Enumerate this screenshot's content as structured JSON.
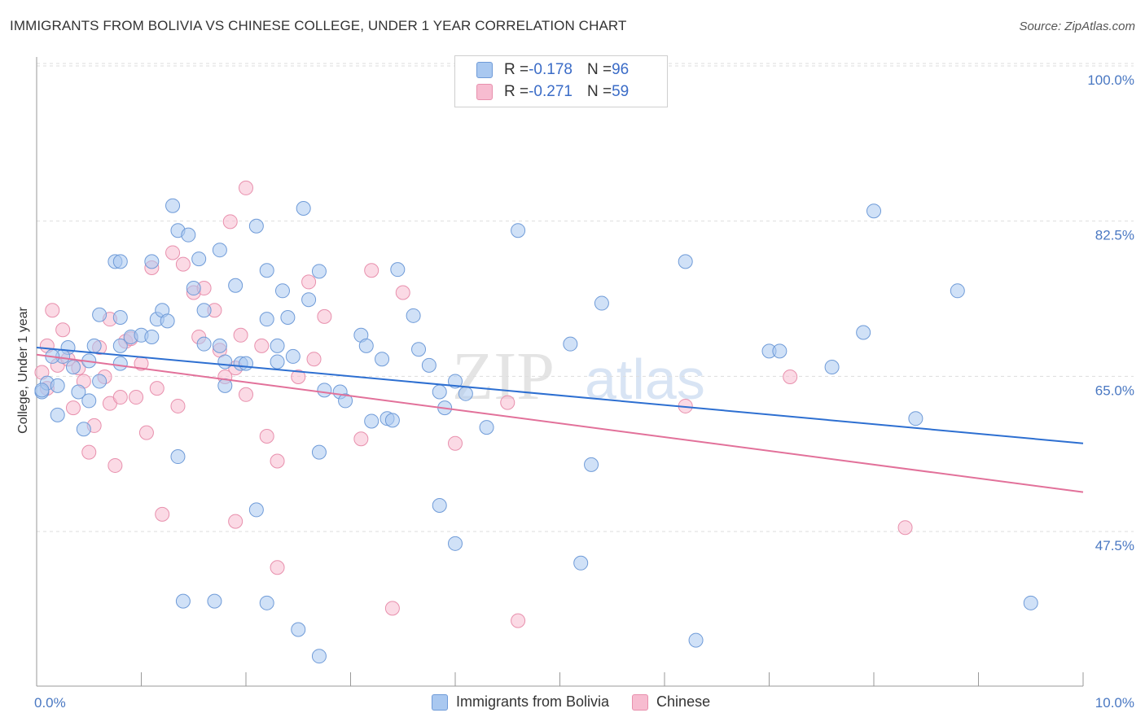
{
  "title": "IMMIGRANTS FROM BOLIVIA VS CHINESE COLLEGE, UNDER 1 YEAR CORRELATION CHART",
  "source": "Source: ZipAtlas.com",
  "watermark": {
    "zip": "ZIP",
    "atlas": "atlas"
  },
  "colors": {
    "blue_fill": "#a9c8f0",
    "blue_stroke": "#6f9bd8",
    "blue_line": "#2d6fd1",
    "pink_fill": "#f7bcd0",
    "pink_stroke": "#e890ad",
    "pink_line": "#e2719a",
    "axis_text": "#4a78c2",
    "grid": "#dddddd"
  },
  "legend_top": [
    {
      "r_label": "R = ",
      "r_value": "-0.178",
      "n_label": "N = ",
      "n_value": "96",
      "series": "blue"
    },
    {
      "r_label": "R = ",
      "r_value": "-0.271",
      "n_label": "N = ",
      "n_value": "59",
      "series": "pink"
    }
  ],
  "legend_bottom": [
    {
      "label": "Immigrants from Bolivia",
      "series": "blue"
    },
    {
      "label": "Chinese",
      "series": "pink"
    }
  ],
  "chart_data": {
    "type": "scatter",
    "xlabel": "",
    "ylabel": "College, Under 1 year",
    "xlim": [
      0,
      10
    ],
    "ylim": [
      30,
      102
    ],
    "x_tick_labels": [
      {
        "value": 0,
        "label": "0.0%"
      },
      {
        "value": 10,
        "label": "10.0%"
      }
    ],
    "y_tick_labels": [
      {
        "value": 100,
        "label": "100.0%"
      },
      {
        "value": 82.5,
        "label": "82.5%"
      },
      {
        "value": 65,
        "label": "65.0%"
      },
      {
        "value": 47.5,
        "label": "47.5%"
      }
    ],
    "x_minor_ticks": [
      0,
      1,
      2,
      3,
      4,
      5,
      6,
      7,
      8,
      9,
      10
    ],
    "series": [
      {
        "name": "Immigrants from Bolivia",
        "color": "blue",
        "trend": {
          "x": [
            0,
            10
          ],
          "y": [
            69.8,
            59.0
          ]
        },
        "points": [
          [
            0.05,
            64.8
          ],
          [
            0.1,
            65.8
          ],
          [
            0.2,
            65.5
          ],
          [
            0.2,
            62.2
          ],
          [
            0.3,
            69.8
          ],
          [
            0.25,
            68.8
          ],
          [
            0.15,
            68.8
          ],
          [
            0.35,
            67.6
          ],
          [
            0.4,
            64.8
          ],
          [
            0.45,
            60.6
          ],
          [
            0.5,
            68.3
          ],
          [
            0.5,
            63.8
          ],
          [
            0.55,
            70.0
          ],
          [
            0.6,
            66.0
          ],
          [
            0.6,
            73.5
          ],
          [
            0.75,
            79.5
          ],
          [
            0.8,
            79.5
          ],
          [
            0.8,
            73.2
          ],
          [
            0.8,
            70.0
          ],
          [
            0.8,
            68.0
          ],
          [
            0.9,
            71.0
          ],
          [
            1.0,
            71.2
          ],
          [
            1.1,
            71.0
          ],
          [
            1.1,
            79.5
          ],
          [
            1.15,
            73.0
          ],
          [
            1.2,
            74.0
          ],
          [
            1.25,
            72.8
          ],
          [
            1.3,
            85.8
          ],
          [
            1.35,
            83.0
          ],
          [
            1.35,
            57.5
          ],
          [
            1.45,
            82.5
          ],
          [
            1.55,
            79.8
          ],
          [
            1.5,
            76.5
          ],
          [
            1.6,
            74.0
          ],
          [
            1.6,
            70.2
          ],
          [
            1.75,
            80.8
          ],
          [
            1.75,
            70.0
          ],
          [
            1.8,
            68.2
          ],
          [
            1.8,
            65.5
          ],
          [
            1.9,
            76.8
          ],
          [
            1.95,
            68.0
          ],
          [
            2.0,
            68.0
          ],
          [
            2.1,
            83.5
          ],
          [
            2.1,
            51.5
          ],
          [
            2.2,
            78.5
          ],
          [
            2.2,
            73.0
          ],
          [
            2.3,
            70.0
          ],
          [
            2.3,
            68.2
          ],
          [
            2.35,
            76.2
          ],
          [
            2.45,
            68.8
          ],
          [
            2.55,
            85.5
          ],
          [
            2.6,
            75.2
          ],
          [
            2.7,
            78.4
          ],
          [
            2.7,
            58.0
          ],
          [
            2.75,
            65.0
          ],
          [
            2.9,
            64.8
          ],
          [
            2.95,
            63.8
          ],
          [
            3.1,
            71.2
          ],
          [
            3.15,
            70.0
          ],
          [
            3.2,
            61.5
          ],
          [
            3.3,
            68.5
          ],
          [
            3.35,
            61.8
          ],
          [
            3.4,
            61.6
          ],
          [
            3.45,
            78.6
          ],
          [
            3.6,
            73.4
          ],
          [
            3.65,
            69.6
          ],
          [
            3.75,
            67.8
          ],
          [
            3.85,
            64.8
          ],
          [
            3.85,
            52.0
          ],
          [
            3.9,
            63.0
          ],
          [
            4.0,
            47.7
          ],
          [
            4.1,
            64.6
          ],
          [
            4.3,
            60.8
          ],
          [
            4.6,
            83.0
          ],
          [
            4.0,
            66.0
          ],
          [
            2.4,
            73.2
          ],
          [
            1.4,
            41.2
          ],
          [
            1.7,
            41.2
          ],
          [
            2.2,
            41.0
          ],
          [
            2.5,
            38.0
          ],
          [
            2.7,
            35.0
          ],
          [
            5.1,
            70.2
          ],
          [
            5.2,
            45.5
          ],
          [
            5.3,
            56.6
          ],
          [
            5.4,
            74.8
          ],
          [
            6.2,
            79.5
          ],
          [
            6.3,
            36.8
          ],
          [
            7.0,
            69.4
          ],
          [
            7.1,
            69.4
          ],
          [
            7.6,
            67.6
          ],
          [
            7.9,
            71.5
          ],
          [
            8.0,
            85.2
          ],
          [
            8.4,
            61.8
          ],
          [
            8.8,
            76.2
          ],
          [
            9.5,
            41.0
          ],
          [
            0.05,
            65.0
          ]
        ]
      },
      {
        "name": "Chinese",
        "color": "pink",
        "trend": {
          "x": [
            0,
            10
          ],
          "y": [
            69.0,
            53.5
          ]
        },
        "points": [
          [
            0.05,
            67.0
          ],
          [
            0.1,
            65.2
          ],
          [
            0.1,
            70.0
          ],
          [
            0.15,
            74.0
          ],
          [
            0.2,
            67.8
          ],
          [
            0.25,
            71.8
          ],
          [
            0.3,
            68.5
          ],
          [
            0.35,
            63.0
          ],
          [
            0.4,
            67.5
          ],
          [
            0.45,
            66.0
          ],
          [
            0.5,
            58.0
          ],
          [
            0.55,
            61.0
          ],
          [
            0.6,
            69.8
          ],
          [
            0.65,
            66.5
          ],
          [
            0.7,
            73.0
          ],
          [
            0.7,
            63.5
          ],
          [
            0.75,
            56.5
          ],
          [
            0.8,
            64.2
          ],
          [
            0.85,
            70.5
          ],
          [
            0.9,
            70.8
          ],
          [
            0.95,
            64.2
          ],
          [
            1.0,
            68.0
          ],
          [
            1.05,
            60.2
          ],
          [
            1.1,
            78.8
          ],
          [
            1.15,
            65.2
          ],
          [
            1.2,
            51.0
          ],
          [
            1.3,
            80.5
          ],
          [
            1.35,
            63.2
          ],
          [
            1.4,
            79.2
          ],
          [
            1.5,
            76.0
          ],
          [
            1.55,
            71.0
          ],
          [
            1.6,
            76.5
          ],
          [
            1.7,
            74.0
          ],
          [
            1.75,
            69.5
          ],
          [
            1.8,
            66.5
          ],
          [
            1.85,
            84.0
          ],
          [
            1.9,
            67.5
          ],
          [
            1.95,
            71.2
          ],
          [
            1.9,
            50.2
          ],
          [
            2.0,
            64.5
          ],
          [
            2.0,
            87.8
          ],
          [
            2.15,
            70.0
          ],
          [
            2.2,
            59.8
          ],
          [
            2.3,
            57.0
          ],
          [
            2.3,
            45.0
          ],
          [
            2.5,
            66.5
          ],
          [
            2.6,
            77.2
          ],
          [
            2.65,
            68.5
          ],
          [
            2.75,
            73.3
          ],
          [
            3.1,
            59.5
          ],
          [
            3.2,
            78.5
          ],
          [
            3.5,
            76.0
          ],
          [
            3.4,
            40.4
          ],
          [
            4.0,
            59.0
          ],
          [
            4.5,
            63.6
          ],
          [
            4.6,
            39.0
          ],
          [
            6.2,
            63.2
          ],
          [
            7.2,
            66.5
          ],
          [
            8.3,
            49.5
          ]
        ]
      }
    ]
  }
}
